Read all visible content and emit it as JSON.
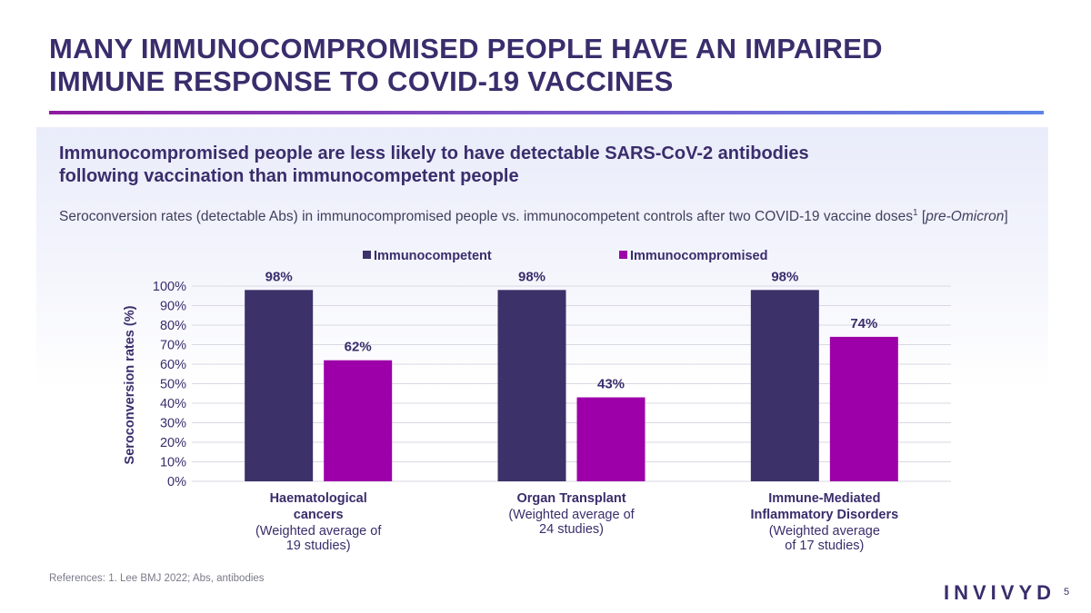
{
  "header": {
    "title_line1": "MANY IMMUNOCOMPROMISED PEOPLE HAVE AN IMPAIRED",
    "title_line2": "IMMUNE RESPONSE TO COVID-19 VACCINES"
  },
  "panel": {
    "subtitle_line1": "Immunocompromised people are less likely to have detectable SARS-CoV-2 antibodies",
    "subtitle_line2": "following vaccination than immunocompetent people",
    "caption_text": "Seroconversion rates (detectable Abs) in immunocompromised people vs. immunocompetent controls after two COVID-19 vaccine doses",
    "caption_sup": "1",
    "caption_italic": "pre-Omicron"
  },
  "footer": {
    "references": "References: 1. Lee BMJ 2022; Abs, antibodies",
    "logo": "INVIVYD",
    "page_number": "5"
  },
  "colors": {
    "immunocompetent": "#3d3169",
    "immunocompromised": "#9d00a8",
    "grid": "#d9d9e3",
    "text": "#3a2d6c"
  },
  "chart_data": {
    "type": "bar",
    "ylabel": "Seroconversion rates (%)",
    "ylim": [
      0,
      100
    ],
    "yticks": [
      "0%",
      "10%",
      "20%",
      "30%",
      "40%",
      "50%",
      "60%",
      "70%",
      "80%",
      "90%",
      "100%"
    ],
    "legend_position": "top",
    "categories": [
      {
        "name_lines": [
          "Haematological",
          "cancers"
        ],
        "note_lines": [
          "(Weighted average of",
          "19 studies)"
        ]
      },
      {
        "name_lines": [
          "Organ Transplant"
        ],
        "note_lines": [
          "(Weighted average of",
          "24 studies)"
        ]
      },
      {
        "name_lines": [
          "Immune-Mediated",
          "Inflammatory Disorders"
        ],
        "note_lines": [
          "(Weighted average",
          "of 17 studies)"
        ]
      }
    ],
    "series": [
      {
        "name": "Immunocompetent",
        "values": [
          98,
          98,
          98
        ],
        "labels": [
          "98%",
          "98%",
          "98%"
        ]
      },
      {
        "name": "Immunocompromised",
        "values": [
          62,
          43,
          74
        ],
        "labels": [
          "62%",
          "43%",
          "74%"
        ]
      }
    ]
  }
}
